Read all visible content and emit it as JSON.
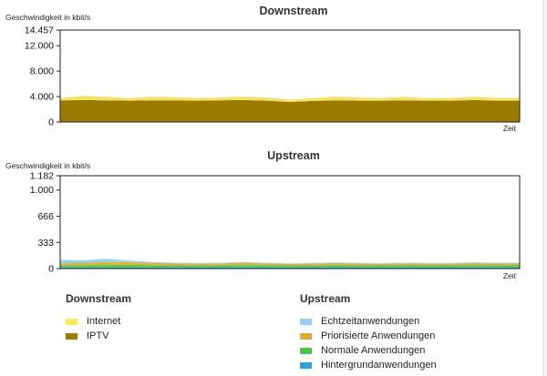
{
  "charts": [
    {
      "id": "downstream",
      "title": "Downstream",
      "ylabel": "Geschwindigkeit in kbit/s",
      "xlabel": "Zeit",
      "ymax": 14457,
      "tick_values": [
        0,
        4000,
        8000,
        12000,
        14457
      ],
      "tick_labels": [
        "0",
        "4.000",
        "8.000",
        "12.000",
        "14.457"
      ]
    },
    {
      "id": "upstream",
      "title": "Upstream",
      "ylabel": "Geschwindigkeit in kbit/s",
      "xlabel": "Zeit",
      "ymax": 1182,
      "tick_values": [
        0,
        333,
        666,
        1000,
        1182
      ],
      "tick_labels": [
        "0",
        "333",
        "666",
        "1.000",
        "1.182"
      ]
    }
  ],
  "chart_data": [
    {
      "type": "area",
      "title": "Downstream",
      "ylabel": "Geschwindigkeit in kbit/s",
      "xlabel": "Zeit",
      "ylim": [
        0,
        14457
      ],
      "stacked": true,
      "x": [
        0,
        1,
        2,
        3,
        4,
        5,
        6,
        7,
        8,
        9,
        10,
        11,
        12,
        13,
        14,
        15,
        16,
        17,
        18,
        19,
        20
      ],
      "series": [
        {
          "name": "IPTV",
          "color": "#9c7a00",
          "values": [
            3400,
            3450,
            3400,
            3350,
            3400,
            3400,
            3350,
            3400,
            3450,
            3350,
            3150,
            3300,
            3400,
            3350,
            3350,
            3400,
            3350,
            3350,
            3450,
            3350,
            3350
          ]
        },
        {
          "name": "Internet",
          "color": "#f0e060",
          "values": [
            350,
            650,
            550,
            400,
            550,
            500,
            450,
            450,
            550,
            500,
            350,
            450,
            600,
            500,
            450,
            550,
            400,
            450,
            500,
            450,
            450
          ]
        }
      ]
    },
    {
      "type": "area",
      "title": "Upstream",
      "ylabel": "Geschwindigkeit in kbit/s",
      "xlabel": "Zeit",
      "ylim": [
        0,
        1182
      ],
      "stacked": true,
      "x": [
        0,
        1,
        2,
        3,
        4,
        5,
        6,
        7,
        8,
        9,
        10,
        11,
        12,
        13,
        14,
        15,
        16,
        17,
        18,
        19,
        20
      ],
      "series": [
        {
          "name": "Hintergrundanwendungen",
          "color": "#2ba4d8",
          "values": [
            15,
            15,
            15,
            15,
            15,
            15,
            15,
            15,
            15,
            15,
            15,
            15,
            15,
            15,
            15,
            15,
            15,
            15,
            15,
            15,
            15
          ]
        },
        {
          "name": "Normale Anwendungen",
          "color": "#47c747",
          "values": [
            25,
            28,
            30,
            32,
            28,
            26,
            28,
            27,
            30,
            28,
            26,
            27,
            28,
            27,
            26,
            28,
            27,
            28,
            30,
            28,
            27
          ]
        },
        {
          "name": "Priorisierte Anwendungen",
          "color": "#e2ad2f",
          "values": [
            25,
            30,
            40,
            35,
            30,
            25,
            20,
            25,
            30,
            22,
            20,
            22,
            28,
            22,
            20,
            22,
            20,
            20,
            25,
            22,
            22
          ]
        },
        {
          "name": "Echtzeitanwendungen",
          "color": "#8fcff2",
          "values": [
            45,
            30,
            40,
            20,
            10,
            8,
            5,
            6,
            8,
            6,
            4,
            6,
            8,
            6,
            6,
            8,
            6,
            6,
            10,
            8,
            10
          ]
        }
      ]
    }
  ],
  "legend": {
    "downstream": {
      "title": "Downstream",
      "items": [
        {
          "label": "Internet",
          "color": "#f5ea5a"
        },
        {
          "label": "IPTV",
          "color": "#9c7a00"
        }
      ]
    },
    "upstream": {
      "title": "Upstream",
      "items": [
        {
          "label": "Echtzeitanwendungen",
          "color": "#8fcff2"
        },
        {
          "label": "Priorisierte Anwendungen",
          "color": "#e2ad2f"
        },
        {
          "label": "Normale Anwendungen",
          "color": "#47c747"
        },
        {
          "label": "Hintergrundanwendungen",
          "color": "#2ba4d8"
        }
      ]
    }
  }
}
